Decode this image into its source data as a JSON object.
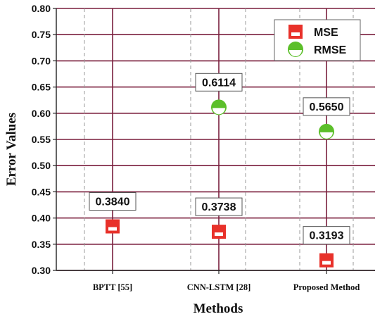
{
  "chart_data": {
    "type": "scatter",
    "categories": [
      "BPTT [55]",
      "CNN-LSTM [28]",
      "Proposed Method"
    ],
    "series": [
      {
        "name": "MSE",
        "values": [
          0.384,
          0.3738,
          0.3193
        ],
        "color": "#e8312a",
        "marker": "square-half"
      },
      {
        "name": "RMSE",
        "values": [
          null,
          0.6114,
          0.565
        ],
        "color": "#5cbf2a",
        "marker": "circle-half"
      }
    ],
    "data_labels": [
      {
        "category": "BPTT [55]",
        "series": "MSE",
        "text": "0.3840"
      },
      {
        "category": "CNN-LSTM [28]",
        "series": "MSE",
        "text": "0.3738"
      },
      {
        "category": "Proposed Method",
        "series": "MSE",
        "text": "0.3193"
      },
      {
        "category": "CNN-LSTM [28]",
        "series": "RMSE",
        "text": "0.6114"
      },
      {
        "category": "Proposed Method",
        "series": "RMSE",
        "text": "0.5650"
      }
    ],
    "xlabel": "Methods",
    "ylabel": "Error Values",
    "ylim": [
      0.3,
      0.8
    ],
    "yticks": [
      "0.30",
      "0.35",
      "0.40",
      "0.45",
      "0.50",
      "0.55",
      "0.60",
      "0.65",
      "0.70",
      "0.75",
      "0.80"
    ],
    "grid": true,
    "grid_color": "#7a1f3d",
    "legend_position": "top-right"
  }
}
